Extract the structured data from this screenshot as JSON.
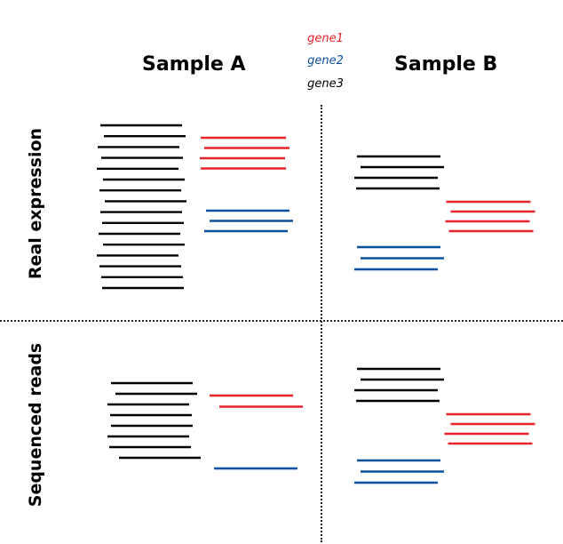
{
  "legend": [
    {
      "label": "gene1",
      "color": "#e8242a"
    },
    {
      "label": "gene2",
      "color": "#0b4f9e"
    },
    {
      "label": "gene3",
      "color": "#000000"
    }
  ],
  "columns": [
    "Sample A",
    "Sample B"
  ],
  "rows": [
    "Real expression",
    "Sequenced reads"
  ],
  "panels": [
    {
      "row": "Real expression",
      "column": "Sample A",
      "gene1": 4,
      "gene2": 3,
      "gene3": 16
    },
    {
      "row": "Real expression",
      "column": "Sample B",
      "gene1": 4,
      "gene2": 3,
      "gene3": 4
    },
    {
      "row": "Sequenced reads",
      "column": "Sample A",
      "gene1": 2,
      "gene2": 1,
      "gene3": 8
    },
    {
      "row": "Sequenced reads",
      "column": "Sample B",
      "gene1": 4,
      "gene2": 3,
      "gene3": 4
    }
  ]
}
